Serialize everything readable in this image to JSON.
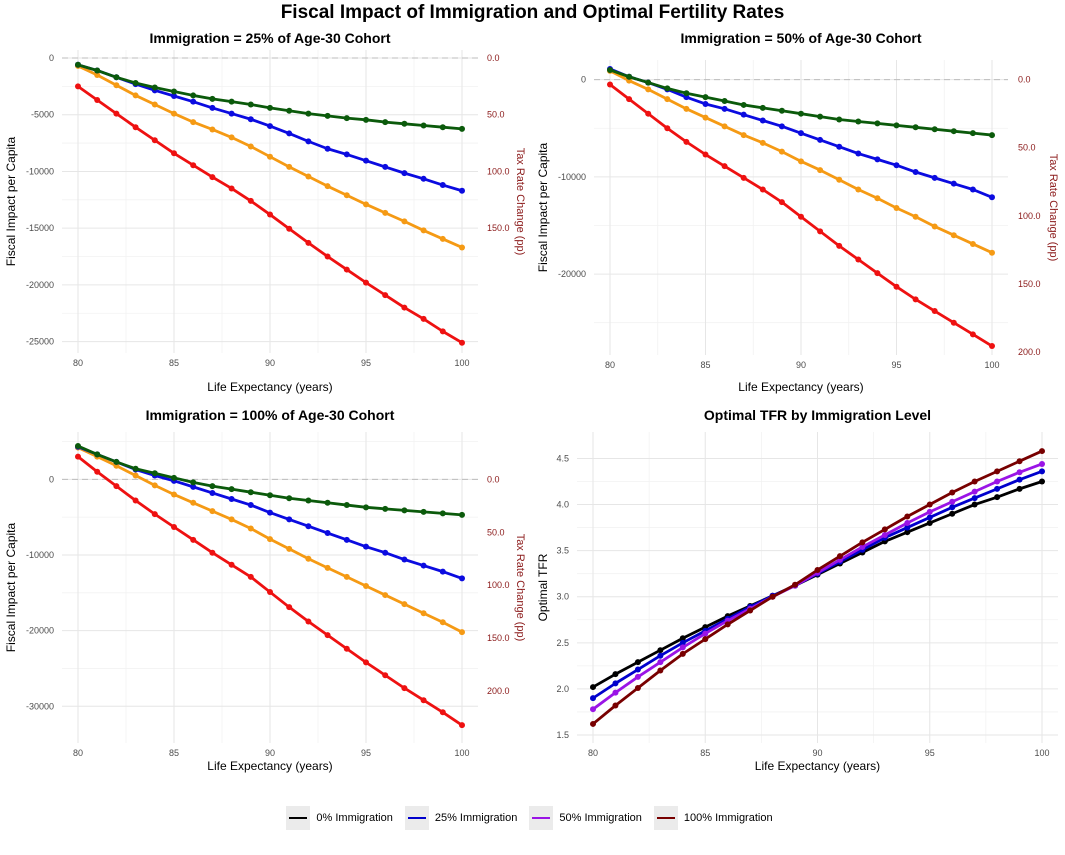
{
  "title": "Fiscal Impact of Immigration and Optimal Fertility Rates",
  "chart_data": [
    {
      "type": "line",
      "title": "Immigration = 25% of Age-30 Cohort",
      "xlabel": "Life Expectancy (years)",
      "ylabel": "Fiscal Impact per Capita",
      "y2label": "Tax Rate Change (pp)",
      "xlim": [
        80,
        100
      ],
      "ylim": [
        -25300,
        0
      ],
      "xticks": [
        80,
        85,
        90,
        95,
        100
      ],
      "xtick_labels": [
        "80",
        "85",
        "90",
        "95",
        "100"
      ],
      "yticks": [
        0,
        -5000,
        -10000,
        -15000,
        -20000,
        -25000
      ],
      "ytick_labels": [
        "0",
        "-5000",
        "-10000",
        "-15000",
        "-20000",
        "-25000"
      ],
      "y2ticks": [
        0,
        -5000,
        -10000,
        -15000
      ],
      "y2tick_labels": [
        "0.0",
        "50.0",
        "100.0",
        "150.0"
      ],
      "x": [
        80,
        81,
        82,
        83,
        84,
        85,
        86,
        87,
        88,
        89,
        90,
        91,
        92,
        93,
        94,
        95,
        96,
        97,
        98,
        99,
        100
      ],
      "series": [
        {
          "name": "red",
          "color": "#ee1111",
          "values": [
            -2500,
            -3700,
            -4900,
            -6100,
            -7250,
            -8400,
            -9450,
            -10500,
            -11500,
            -12600,
            -13800,
            -15050,
            -16300,
            -17500,
            -18650,
            -19800,
            -20900,
            -22000,
            -23000,
            -24100,
            -25100
          ]
        },
        {
          "name": "orange",
          "color": "#f59a14",
          "values": [
            -700,
            -1500,
            -2400,
            -3300,
            -4100,
            -4900,
            -5650,
            -6300,
            -7000,
            -7800,
            -8700,
            -9600,
            -10450,
            -11300,
            -12100,
            -12900,
            -13650,
            -14400,
            -15200,
            -15950,
            -16700
          ]
        },
        {
          "name": "blue",
          "color": "#0b0be0",
          "values": [
            -600,
            -1100,
            -1700,
            -2300,
            -2850,
            -3350,
            -3850,
            -4400,
            -4900,
            -5400,
            -6000,
            -6650,
            -7350,
            -8000,
            -8500,
            -9050,
            -9600,
            -10150,
            -10650,
            -11200,
            -11700
          ]
        },
        {
          "name": "green",
          "color": "#0b5a0b",
          "values": [
            -600,
            -1100,
            -1700,
            -2200,
            -2600,
            -2950,
            -3300,
            -3600,
            -3850,
            -4100,
            -4400,
            -4650,
            -4900,
            -5100,
            -5300,
            -5450,
            -5650,
            -5800,
            -5950,
            -6100,
            -6250
          ]
        }
      ]
    },
    {
      "type": "line",
      "title": "Immigration = 50% of Age-30 Cohort",
      "xlabel": "Life Expectancy (years)",
      "ylabel": "Fiscal Impact per Capita",
      "y2label": "Tax Rate Change (pp)",
      "xlim": [
        80,
        100
      ],
      "ylim": [
        -27500,
        1200
      ],
      "xticks": [
        80,
        85,
        90,
        95,
        100
      ],
      "xtick_labels": [
        "80",
        "85",
        "90",
        "95",
        "100"
      ],
      "yticks": [
        0,
        -10000,
        -20000
      ],
      "ytick_labels": [
        "0",
        "-10000",
        "-20000"
      ],
      "y2ticks": [
        0,
        -7000,
        -14000,
        -21000,
        -28000
      ],
      "y2tick_labels": [
        "0.0",
        "50.0",
        "100.0",
        "150.0",
        "200.0"
      ],
      "x": [
        80,
        81,
        82,
        83,
        84,
        85,
        86,
        87,
        88,
        89,
        90,
        91,
        92,
        93,
        94,
        95,
        96,
        97,
        98,
        99,
        100
      ],
      "series": [
        {
          "name": "red",
          "color": "#ee1111",
          "values": [
            -500,
            -2000,
            -3500,
            -5000,
            -6400,
            -7700,
            -8900,
            -10100,
            -11300,
            -12600,
            -14100,
            -15600,
            -17100,
            -18500,
            -19900,
            -21300,
            -22600,
            -23800,
            -25000,
            -26200,
            -27400
          ]
        },
        {
          "name": "orange",
          "color": "#f59a14",
          "values": [
            900,
            -100,
            -1000,
            -2000,
            -3000,
            -3900,
            -4800,
            -5700,
            -6500,
            -7400,
            -8400,
            -9300,
            -10300,
            -11300,
            -12200,
            -13200,
            -14100,
            -15100,
            -16000,
            -16900,
            -17800
          ]
        },
        {
          "name": "blue",
          "color": "#0b0be0",
          "values": [
            1100,
            300,
            -300,
            -1000,
            -1800,
            -2500,
            -3000,
            -3600,
            -4200,
            -4800,
            -5500,
            -6200,
            -6900,
            -7600,
            -8200,
            -8800,
            -9500,
            -10100,
            -10700,
            -11300,
            -12100
          ]
        },
        {
          "name": "green",
          "color": "#0b5a0b",
          "values": [
            1000,
            300,
            -300,
            -900,
            -1400,
            -1800,
            -2200,
            -2600,
            -2900,
            -3200,
            -3500,
            -3800,
            -4100,
            -4300,
            -4500,
            -4700,
            -4900,
            -5100,
            -5300,
            -5500,
            -5700
          ]
        }
      ]
    },
    {
      "type": "line",
      "title": "Immigration = 100% of Age-30 Cohort",
      "xlabel": "Life Expectancy (years)",
      "ylabel": "Fiscal Impact per Capita",
      "y2label": "Tax Rate Change (pp)",
      "xlim": [
        80,
        100
      ],
      "ylim": [
        -33800,
        5200
      ],
      "xticks": [
        80,
        85,
        90,
        95,
        100
      ],
      "xtick_labels": [
        "80",
        "85",
        "90",
        "95",
        "100"
      ],
      "yticks": [
        0,
        -10000,
        -20000,
        -30000
      ],
      "ytick_labels": [
        "0",
        "-10000",
        "-20000",
        "-30000"
      ],
      "y2ticks": [
        0,
        -7000,
        -14000,
        -21000,
        -28000
      ],
      "y2tick_labels": [
        "0.0",
        "50.0",
        "100.0",
        "150.0",
        "200.0"
      ],
      "x": [
        80,
        81,
        82,
        83,
        84,
        85,
        86,
        87,
        88,
        89,
        90,
        91,
        92,
        93,
        94,
        95,
        96,
        97,
        98,
        99,
        100
      ],
      "series": [
        {
          "name": "red",
          "color": "#ee1111",
          "values": [
            3000,
            1000,
            -900,
            -2800,
            -4600,
            -6300,
            -8000,
            -9700,
            -11300,
            -12900,
            -14900,
            -16900,
            -18800,
            -20600,
            -22400,
            -24200,
            -25900,
            -27600,
            -29200,
            -30800,
            -32500
          ]
        },
        {
          "name": "orange",
          "color": "#f59a14",
          "values": [
            4200,
            3000,
            1800,
            500,
            -800,
            -2000,
            -3100,
            -4200,
            -5300,
            -6500,
            -7900,
            -9200,
            -10500,
            -11700,
            -12900,
            -14100,
            -15300,
            -16500,
            -17700,
            -18900,
            -20200
          ]
        },
        {
          "name": "blue",
          "color": "#0b0be0",
          "values": [
            4300,
            3300,
            2300,
            1300,
            500,
            -200,
            -1000,
            -1800,
            -2600,
            -3400,
            -4400,
            -5300,
            -6200,
            -7100,
            -8000,
            -8900,
            -9700,
            -10600,
            -11400,
            -12200,
            -13100
          ]
        },
        {
          "name": "green",
          "color": "#0b5a0b",
          "values": [
            4400,
            3300,
            2300,
            1400,
            800,
            200,
            -400,
            -900,
            -1300,
            -1700,
            -2100,
            -2500,
            -2800,
            -3100,
            -3400,
            -3700,
            -3900,
            -4100,
            -4300,
            -4500,
            -4700
          ]
        }
      ]
    },
    {
      "type": "line",
      "title": "Optimal TFR by Immigration Level",
      "xlabel": "Life Expectancy (years)",
      "ylabel": "Optimal TFR",
      "xlim": [
        80,
        100
      ],
      "ylim": [
        1.5,
        4.7
      ],
      "xticks": [
        80,
        85,
        90,
        95,
        100
      ],
      "xtick_labels": [
        "80",
        "85",
        "90",
        "95",
        "100"
      ],
      "yticks": [
        1.5,
        2.0,
        2.5,
        3.0,
        3.5,
        4.0,
        4.5
      ],
      "ytick_labels": [
        "1.5",
        "2.0",
        "2.5",
        "3.0",
        "3.5",
        "4.0",
        "4.5"
      ],
      "x": [
        80,
        81,
        82,
        83,
        84,
        85,
        86,
        87,
        88,
        89,
        90,
        91,
        92,
        93,
        94,
        95,
        96,
        97,
        98,
        99,
        100
      ],
      "series": [
        {
          "name": "0% Immigration",
          "color": "#000000",
          "values": [
            2.02,
            2.16,
            2.29,
            2.42,
            2.55,
            2.67,
            2.79,
            2.9,
            3.01,
            3.12,
            3.24,
            3.36,
            3.48,
            3.6,
            3.7,
            3.8,
            3.9,
            4.0,
            4.08,
            4.17,
            4.25
          ]
        },
        {
          "name": "25% Immigration",
          "color": "#0000cc",
          "values": [
            1.9,
            2.06,
            2.21,
            2.36,
            2.5,
            2.63,
            2.76,
            2.89,
            3.01,
            3.12,
            3.25,
            3.38,
            3.51,
            3.64,
            3.75,
            3.86,
            3.97,
            4.07,
            4.17,
            4.27,
            4.36
          ]
        },
        {
          "name": "50% Immigration",
          "color": "#9a14e6",
          "values": [
            1.78,
            1.96,
            2.13,
            2.29,
            2.45,
            2.6,
            2.74,
            2.87,
            3.0,
            3.12,
            3.26,
            3.4,
            3.54,
            3.67,
            3.8,
            3.92,
            4.03,
            4.14,
            4.25,
            4.35,
            4.44
          ]
        },
        {
          "name": "100% Immigration",
          "color": "#780000",
          "values": [
            1.62,
            1.82,
            2.01,
            2.2,
            2.38,
            2.54,
            2.7,
            2.85,
            3.0,
            3.13,
            3.29,
            3.44,
            3.59,
            3.73,
            3.87,
            4.0,
            4.13,
            4.25,
            4.36,
            4.47,
            4.58
          ]
        }
      ]
    }
  ],
  "legend": [
    {
      "label": "0% Immigration",
      "color": "#000000"
    },
    {
      "label": "25% Immigration",
      "color": "#0000cc"
    },
    {
      "label": "50% Immigration",
      "color": "#9a14e6"
    },
    {
      "label": "100% Immigration",
      "color": "#780000"
    }
  ]
}
